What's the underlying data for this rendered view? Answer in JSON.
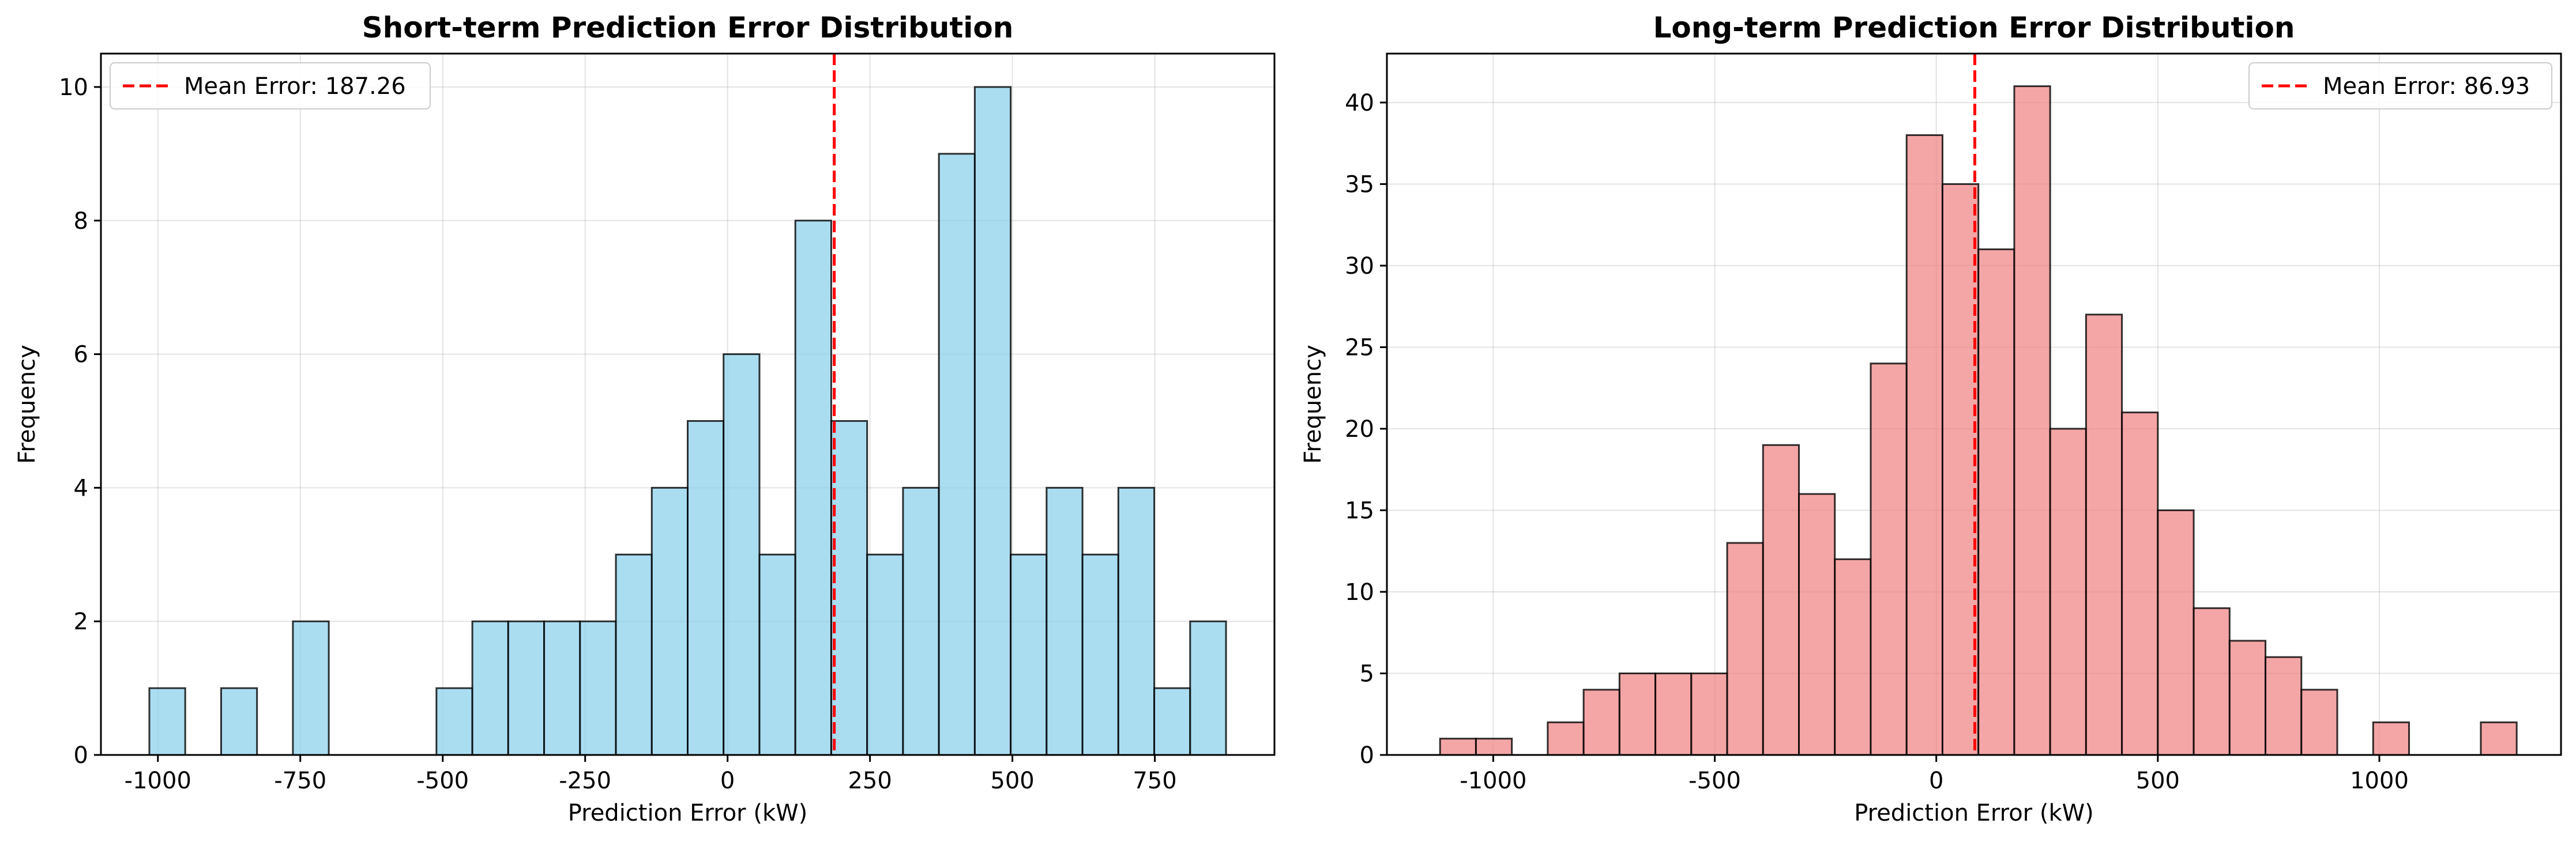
{
  "chart_data": [
    {
      "type": "histogram",
      "title": "Short-term Prediction Error Distribution",
      "xlabel": "Prediction Error (kW)",
      "ylabel": "Frequency",
      "xlim": [
        -1100,
        960
      ],
      "ylim": [
        0,
        10.5
      ],
      "xticks": [
        -1000,
        -750,
        -500,
        -250,
        0,
        250,
        500,
        750
      ],
      "yticks": [
        0,
        2,
        4,
        6,
        8,
        10
      ],
      "bin_start": -1015,
      "bin_width": 63,
      "counts": [
        1,
        0,
        1,
        0,
        2,
        0,
        0,
        0,
        1,
        2,
        2,
        2,
        2,
        3,
        4,
        5,
        6,
        3,
        8,
        5,
        3,
        4,
        9,
        10,
        3,
        4,
        3,
        4,
        1,
        2
      ],
      "bar_color": "#87CEEB",
      "edge_color": "#000000",
      "mean_error": 187.26,
      "legend_label": "Mean Error: 187.26",
      "legend_position": "upper left",
      "mean_line_color": "#ff0000",
      "grid": true
    },
    {
      "type": "histogram",
      "title": "Long-term Prediction Error Distribution",
      "xlabel": "Prediction Error (kW)",
      "ylabel": "Frequency",
      "xlim": [
        -1240,
        1410
      ],
      "ylim": [
        0,
        43
      ],
      "xticks": [
        -1000,
        -500,
        0,
        500,
        1000
      ],
      "yticks": [
        0,
        5,
        10,
        15,
        20,
        25,
        30,
        35,
        40
      ],
      "bin_start": -1120,
      "bin_width": 81,
      "counts": [
        1,
        1,
        0,
        2,
        4,
        5,
        5,
        5,
        13,
        19,
        16,
        12,
        24,
        38,
        35,
        31,
        41,
        20,
        27,
        21,
        15,
        9,
        7,
        6,
        4,
        0,
        2,
        0,
        0,
        2
      ],
      "bar_color": "#F08080",
      "edge_color": "#000000",
      "mean_error": 86.93,
      "legend_label": "Mean Error: 86.93",
      "legend_position": "upper right",
      "mean_line_color": "#ff0000",
      "grid": true
    }
  ]
}
